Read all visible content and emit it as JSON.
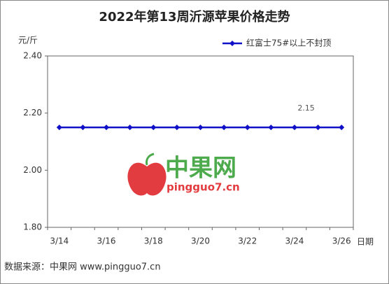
{
  "chart_data": {
    "type": "line",
    "title": "2022年第13周沂源苹果价格走势",
    "y_label": "元/斤",
    "x_label": "日期",
    "categories": [
      "3/14",
      null,
      "3/16",
      null,
      "3/18",
      null,
      "3/20",
      null,
      "3/22",
      null,
      "3/24",
      null,
      "3/26"
    ],
    "series": [
      {
        "name": "红富士75#以上不封顶",
        "color": "#1010c8",
        "values": [
          2.15,
          2.15,
          2.15,
          2.15,
          2.15,
          2.15,
          2.15,
          2.15,
          2.15,
          2.15,
          2.15,
          2.15,
          2.15
        ],
        "value_labels": [
          null,
          null,
          null,
          null,
          null,
          null,
          null,
          null,
          null,
          null,
          null,
          "2.15",
          null
        ]
      }
    ],
    "ylim": [
      1.8,
      2.4
    ],
    "yticks": [
      {
        "value": 1.8,
        "label": "1.80"
      },
      {
        "value": 2.0,
        "label": "2.00"
      },
      {
        "value": 2.2,
        "label": "2.20"
      },
      {
        "value": 2.4,
        "label": "2.40"
      }
    ],
    "grid": false,
    "legend": "top-right",
    "watermark": {
      "name": "中果网",
      "site": "pingguo7.cn"
    },
    "source": "数据来源：中果网 www.pingguo7.cn"
  }
}
